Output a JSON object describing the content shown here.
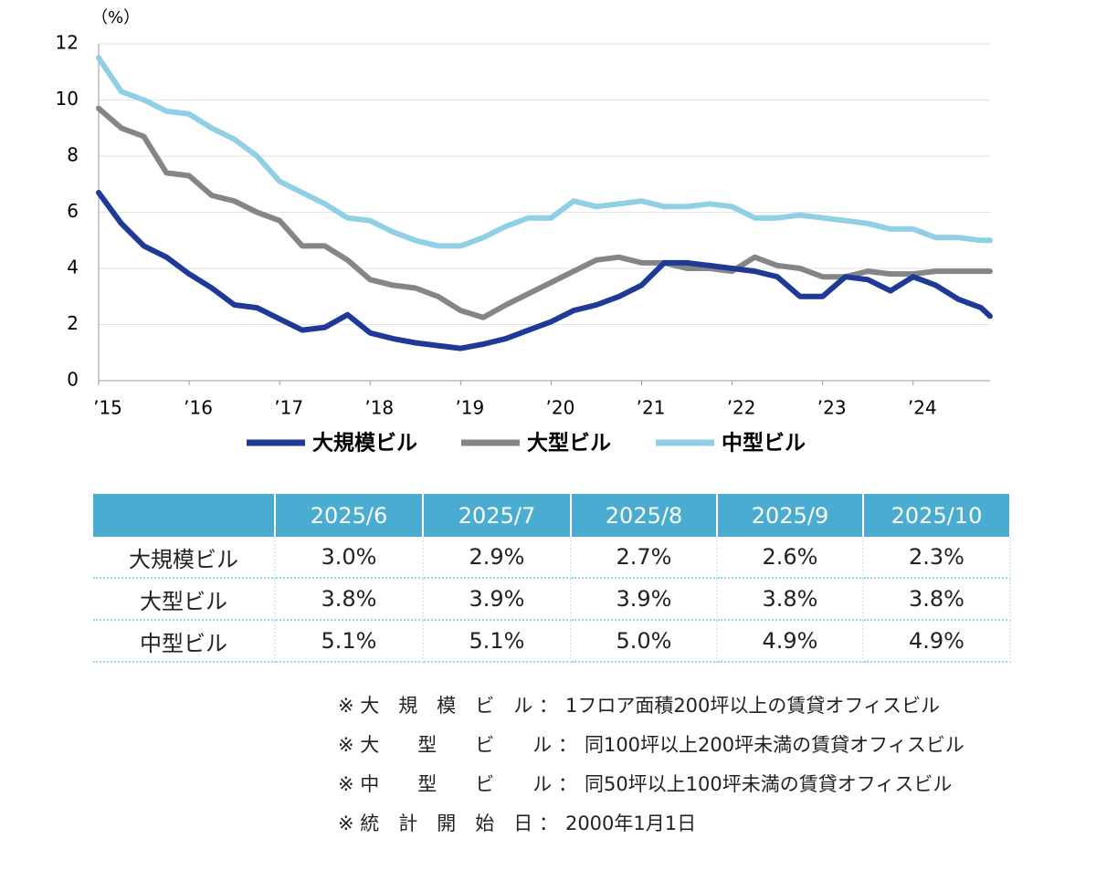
{
  "chart_data": {
    "type": "line",
    "y_unit": "（%）",
    "x": [
      2015,
      2015.25,
      2015.5,
      2015.75,
      2016,
      2016.25,
      2016.5,
      2016.75,
      2017,
      2017.25,
      2017.5,
      2017.75,
      2018,
      2018.25,
      2018.5,
      2018.75,
      2019,
      2019.25,
      2019.5,
      2019.75,
      2020,
      2020.25,
      2020.5,
      2020.75,
      2021,
      2021.25,
      2021.5,
      2021.75,
      2022,
      2022.25,
      2022.5,
      2022.75,
      2023,
      2023.25,
      2023.5,
      2023.75,
      2024,
      2024.25,
      2024.5,
      2024.75,
      2024.85
    ],
    "xlim": [
      2015,
      2024.85
    ],
    "xticks": [
      {
        "value": 2015,
        "label": "’15"
      },
      {
        "value": 2016,
        "label": "’16"
      },
      {
        "value": 2017,
        "label": "’17"
      },
      {
        "value": 2018,
        "label": "’18"
      },
      {
        "value": 2019,
        "label": "’19"
      },
      {
        "value": 2020,
        "label": "’20"
      },
      {
        "value": 2021,
        "label": "’21"
      },
      {
        "value": 2022,
        "label": "’22"
      },
      {
        "value": 2023,
        "label": "’23"
      },
      {
        "value": 2024,
        "label": "’24"
      }
    ],
    "ylim": [
      0,
      12
    ],
    "yticks": [
      0,
      2,
      4,
      6,
      8,
      10,
      12
    ],
    "grid": true,
    "series": [
      {
        "name": "大規模ビル",
        "color": "#1e3a96",
        "values": [
          6.7,
          5.6,
          4.8,
          4.4,
          3.8,
          3.3,
          2.7,
          2.6,
          2.2,
          1.8,
          1.9,
          2.35,
          1.7,
          1.5,
          1.35,
          1.25,
          1.15,
          1.3,
          1.5,
          1.8,
          2.1,
          2.5,
          2.7,
          3.0,
          3.4,
          4.2,
          4.2,
          4.1,
          4.0,
          3.9,
          3.7,
          3.0,
          3.0,
          3.7,
          3.6,
          3.2,
          3.7,
          3.4,
          2.9,
          2.6,
          2.3
        ]
      },
      {
        "name": "大型ビル",
        "color": "#858589",
        "values": [
          9.7,
          9.0,
          8.7,
          7.4,
          7.3,
          6.6,
          6.4,
          6.0,
          5.7,
          4.8,
          4.8,
          4.3,
          3.6,
          3.4,
          3.3,
          3.0,
          2.5,
          2.25,
          2.7,
          3.1,
          3.5,
          3.9,
          4.3,
          4.4,
          4.2,
          4.2,
          4.0,
          4.0,
          3.9,
          4.4,
          4.1,
          4.0,
          3.7,
          3.7,
          3.9,
          3.8,
          3.8,
          3.9,
          3.9,
          3.9,
          3.9
        ]
      },
      {
        "name": "中型ビル",
        "color": "#8fd0e6",
        "values": [
          11.5,
          10.3,
          10.0,
          9.6,
          9.5,
          9.0,
          8.6,
          8.0,
          7.1,
          6.7,
          6.3,
          5.8,
          5.7,
          5.3,
          5.0,
          4.8,
          4.8,
          5.1,
          5.5,
          5.8,
          5.8,
          6.4,
          6.2,
          6.3,
          6.4,
          6.2,
          6.2,
          6.3,
          6.2,
          5.8,
          5.8,
          5.9,
          5.8,
          5.7,
          5.6,
          5.4,
          5.4,
          5.1,
          5.1,
          5.0,
          5.0
        ]
      }
    ]
  },
  "table": {
    "header": [
      "",
      "2025/6",
      "2025/7",
      "2025/8",
      "2025/9",
      "2025/10"
    ],
    "rows": [
      [
        "大規模ビル",
        "3.0%",
        "2.9%",
        "2.7%",
        "2.6%",
        "2.3%"
      ],
      [
        "大型ビル",
        "3.8%",
        "3.9%",
        "3.9%",
        "3.8%",
        "3.8%"
      ],
      [
        "中型ビル",
        "5.1%",
        "5.1%",
        "5.0%",
        "4.9%",
        "4.9%"
      ]
    ]
  },
  "notes": [
    {
      "label": "※ 大　規　模　ビ　ル ：",
      "text": "1フロア面積200坪以上の賃貸オフィスビル"
    },
    {
      "label": "※ 大　　型　　ビ　　ル ：",
      "text": "同100坪以上200坪未満の賃貸オフィスビル"
    },
    {
      "label": "※ 中　　型　　ビ　　ル ：",
      "text": "同50坪以上100坪未満の賃貸オフィスビル"
    },
    {
      "label": "※ 統　計　開　始　日 ：",
      "text": "2000年1月1日"
    }
  ]
}
